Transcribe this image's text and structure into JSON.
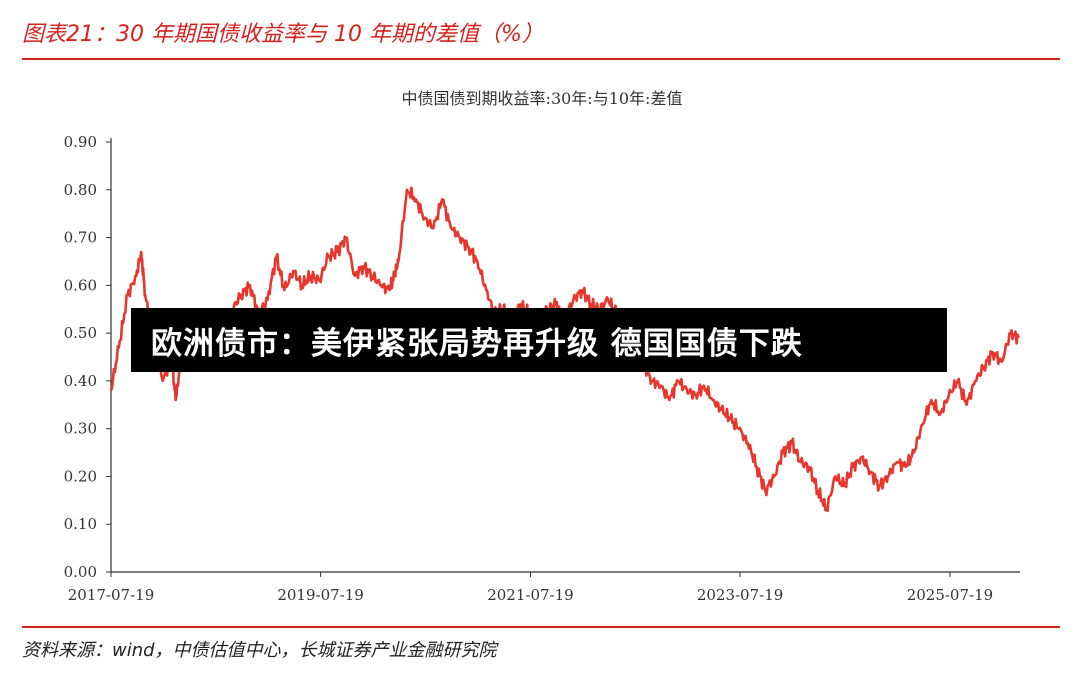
{
  "figure": {
    "title": "图表21：30 年期国债收益率与 10 年期的差值（%）",
    "source": "资料来源：wind，中债估值中心，长城证券产业金融研究院"
  },
  "headline": "欧洲债市：美伊紧张局势再升级 德国国债下跌",
  "colors": {
    "accent": "#d7211d",
    "series": "#e8362c",
    "overlay_bg": "#000000"
  },
  "chart_data": {
    "type": "line",
    "title": "中债国债到期收益率:30年:与10年:差值",
    "xlabel": "",
    "ylabel": "",
    "ylim": [
      0,
      0.9
    ],
    "yticks": [
      "0.00",
      "0.10",
      "0.20",
      "0.30",
      "0.40",
      "0.50",
      "0.60",
      "0.70",
      "0.80",
      "0.90"
    ],
    "xlim": [
      "2017-07-19",
      "2026-03-20"
    ],
    "xticks": [
      "2017-07-19",
      "2019-07-19",
      "2021-07-19",
      "2023-07-19",
      "2025-07-19"
    ],
    "grid": false,
    "series": [
      {
        "name": "",
        "x": [
          "2017-07-19",
          "2017-08-15",
          "2017-09-15",
          "2017-10-15",
          "2017-11-01",
          "2017-11-15",
          "2017-12-15",
          "2018-01-15",
          "2018-02-15",
          "2018-03-01",
          "2018-03-15",
          "2018-04-15",
          "2018-05-15",
          "2018-06-15",
          "2018-07-15",
          "2018-08-15",
          "2018-09-15",
          "2018-10-15",
          "2018-11-15",
          "2018-12-15",
          "2019-01-15",
          "2019-02-15",
          "2019-03-15",
          "2019-04-15",
          "2019-05-15",
          "2019-06-15",
          "2019-07-15",
          "2019-08-15",
          "2019-09-15",
          "2019-10-15",
          "2019-11-15",
          "2019-12-15",
          "2020-01-15",
          "2020-02-15",
          "2020-03-15",
          "2020-04-01",
          "2020-04-15",
          "2020-05-15",
          "2020-06-15",
          "2020-07-15",
          "2020-08-15",
          "2020-09-15",
          "2020-10-15",
          "2020-11-15",
          "2020-12-15",
          "2021-01-15",
          "2021-02-15",
          "2021-03-15",
          "2021-04-15",
          "2021-05-15",
          "2021-06-15",
          "2021-07-15",
          "2021-08-15",
          "2021-09-15",
          "2021-10-15",
          "2021-11-15",
          "2021-12-15",
          "2022-01-15",
          "2022-02-15",
          "2022-03-15",
          "2022-04-15",
          "2022-05-15",
          "2022-06-15",
          "2022-07-15",
          "2022-08-15",
          "2022-09-15",
          "2022-10-15",
          "2022-11-15",
          "2022-12-15",
          "2023-01-15",
          "2023-02-15",
          "2023-03-15",
          "2023-04-15",
          "2023-05-15",
          "2023-06-15",
          "2023-07-15",
          "2023-08-15",
          "2023-09-15",
          "2023-10-15",
          "2023-11-15",
          "2023-12-15",
          "2024-01-15",
          "2024-02-15",
          "2024-03-15",
          "2024-04-15",
          "2024-05-15",
          "2024-06-15",
          "2024-07-15",
          "2024-08-15",
          "2024-09-15",
          "2024-10-15",
          "2024-11-15",
          "2024-12-15",
          "2025-01-15",
          "2025-02-15",
          "2025-03-15",
          "2025-04-15",
          "2025-05-15",
          "2025-06-15",
          "2025-07-15",
          "2025-08-15",
          "2025-09-15",
          "2025-10-15",
          "2025-11-15",
          "2025-12-15",
          "2026-01-15",
          "2026-02-15",
          "2026-03-15"
        ],
        "y": [
          0.38,
          0.47,
          0.58,
          0.62,
          0.67,
          0.58,
          0.48,
          0.4,
          0.45,
          0.36,
          0.42,
          0.48,
          0.43,
          0.47,
          0.5,
          0.52,
          0.55,
          0.58,
          0.6,
          0.54,
          0.57,
          0.66,
          0.59,
          0.63,
          0.6,
          0.62,
          0.61,
          0.66,
          0.67,
          0.7,
          0.62,
          0.64,
          0.62,
          0.6,
          0.59,
          0.62,
          0.65,
          0.8,
          0.78,
          0.74,
          0.72,
          0.78,
          0.72,
          0.7,
          0.68,
          0.65,
          0.59,
          0.54,
          0.55,
          0.52,
          0.56,
          0.54,
          0.52,
          0.55,
          0.56,
          0.53,
          0.57,
          0.59,
          0.56,
          0.55,
          0.57,
          0.54,
          0.51,
          0.5,
          0.44,
          0.4,
          0.39,
          0.36,
          0.4,
          0.38,
          0.37,
          0.39,
          0.36,
          0.34,
          0.32,
          0.3,
          0.27,
          0.22,
          0.17,
          0.2,
          0.25,
          0.27,
          0.23,
          0.22,
          0.17,
          0.13,
          0.2,
          0.18,
          0.22,
          0.24,
          0.21,
          0.18,
          0.2,
          0.23,
          0.22,
          0.25,
          0.31,
          0.36,
          0.33,
          0.37,
          0.4,
          0.35,
          0.4,
          0.43,
          0.46,
          0.44,
          0.5,
          0.49
        ]
      }
    ]
  }
}
